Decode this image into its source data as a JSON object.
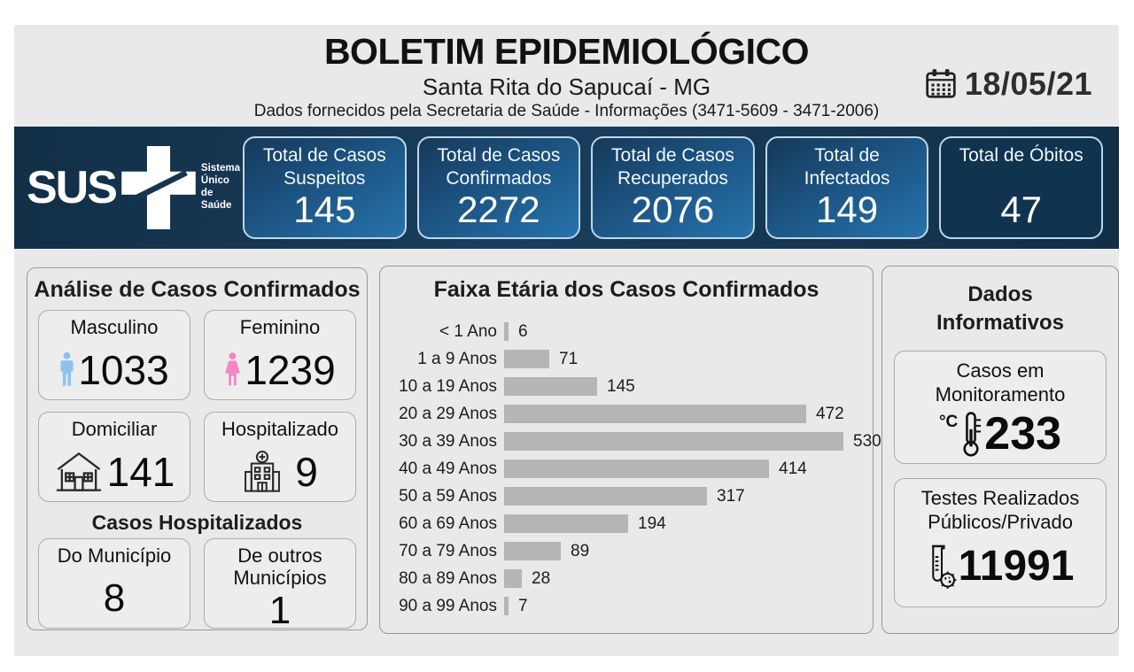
{
  "header": {
    "title": "BOLETIM EPIDEMIOLÓGICO",
    "subtitle": "Santa Rita do Sapucaí - MG",
    "info_line": "Dados fornecidos pela Secretaria de Saúde - Informações (3471-5609 - 3471-2006)",
    "date": "18/05/21"
  },
  "sus_logo": {
    "text": "SUS",
    "tagline_lines": [
      "Sistema",
      "Único",
      "de Saúde"
    ]
  },
  "summary_cards": [
    {
      "label": "Total de Casos Suspeitos",
      "value": "145"
    },
    {
      "label": "Total de Casos Confirmados",
      "value": "2272"
    },
    {
      "label": "Total de Casos Recuperados",
      "value": "2076"
    },
    {
      "label": "Total de Infectados",
      "value": "149"
    },
    {
      "label": "Total de Óbitos",
      "value": "47"
    }
  ],
  "analysis": {
    "title": "Análise de Casos Confirmados",
    "cards": [
      {
        "label": "Masculino",
        "value": "1033",
        "icon": "male-icon"
      },
      {
        "label": "Feminino",
        "value": "1239",
        "icon": "female-icon"
      },
      {
        "label": "Domiciliar",
        "value": "141",
        "icon": "house-icon"
      },
      {
        "label": "Hospitalizado",
        "value": "9",
        "icon": "hospital-icon"
      }
    ],
    "hospitalized_title": "Casos Hospitalizados",
    "hospitalized_cards": [
      {
        "label": "Do Município",
        "value": "8"
      },
      {
        "label": "De outros Municípios",
        "value": "1"
      }
    ]
  },
  "chart_data": {
    "type": "bar",
    "orientation": "horizontal",
    "title": "Faixa Etária dos Casos Confirmados",
    "categories": [
      "< 1 Ano",
      "1 a 9 Anos",
      "10 a 19 Anos",
      "20 a 29 Anos",
      "30 a 39 Anos",
      "40 a 49 Anos",
      "50 a 59 Anos",
      "60 a 69 Anos",
      "70 a 79 Anos",
      "80 a 89 Anos",
      "90 a 99 Anos"
    ],
    "values": [
      6,
      71,
      145,
      472,
      530,
      414,
      317,
      194,
      89,
      28,
      7
    ],
    "data_labels": true,
    "bar_color": "#b5b5b5",
    "xlim": [
      0,
      560
    ],
    "grid": false,
    "legend": false
  },
  "info_panel": {
    "title": "Dados Informativos",
    "cards": [
      {
        "label": "Casos em Monitoramento",
        "value": "233",
        "icon": "thermometer-icon",
        "unit_prefix": "°C"
      },
      {
        "label": "Testes Realizados Públicos/Privado",
        "value": "11991",
        "icon": "test-tube-icon"
      }
    ]
  },
  "colors": {
    "board_bg": "#e9e9e9",
    "bar_navy": "#142f47",
    "card_blue_gradient_start": "#16395a",
    "card_blue_gradient_end": "#2673ad",
    "obitos_card_bg": "#103350",
    "chart_bar": "#b5b5b5",
    "male_icon": "#8ec2ee",
    "female_icon": "#f585c5",
    "text_dark": "#1a1a1a"
  }
}
